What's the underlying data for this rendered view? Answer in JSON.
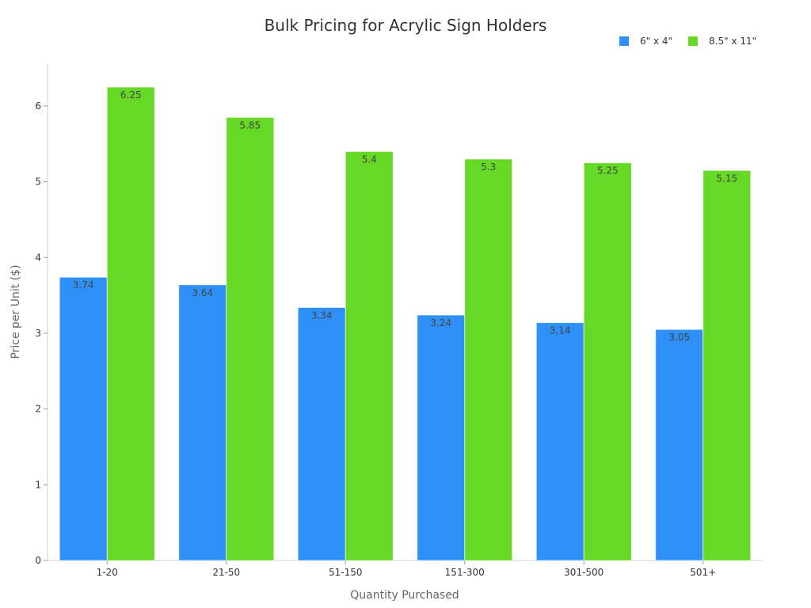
{
  "chart_data": {
    "type": "bar",
    "title": "Bulk Pricing for Acrylic Sign Holders",
    "xlabel": "Quantity Purchased",
    "ylabel": "Price per Unit ($)",
    "categories": [
      "1-20",
      "21-50",
      "51-150",
      "151-300",
      "301-500",
      "501+"
    ],
    "series": [
      {
        "name": "6\" x 4\"",
        "color": "#2f90f7",
        "values": [
          3.74,
          3.64,
          3.34,
          3.24,
          3.14,
          3.05
        ]
      },
      {
        "name": "8.5\" x 11\"",
        "color": "#66d926",
        "values": [
          6.25,
          5.85,
          5.4,
          5.3,
          5.25,
          5.15
        ]
      }
    ],
    "ylim": [
      0,
      6.6
    ],
    "yticks": [
      0,
      1,
      2,
      3,
      4,
      5,
      6
    ],
    "grid": false,
    "legend_position": "top-right",
    "data_labels": true
  }
}
